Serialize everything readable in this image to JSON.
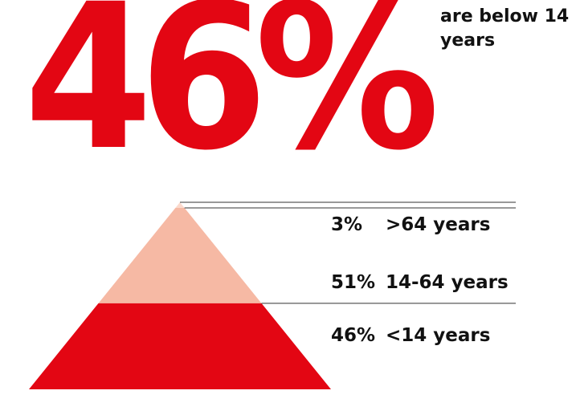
{
  "headline": {
    "value": "46%",
    "caption": "are below 14 years"
  },
  "colors": {
    "accent": "#e30613",
    "light": "#f6b9a4",
    "lightest": "#fbd9cc",
    "line": "#333333",
    "text": "#111111"
  },
  "chart_data": {
    "type": "pyramid",
    "title": "",
    "categories": [
      ">64 years",
      "14-64 years",
      "<14 years"
    ],
    "values": [
      3,
      51,
      46
    ],
    "unit": "%",
    "labels": [
      {
        "pct": "3%",
        "range": ">64 years"
      },
      {
        "pct": "51%",
        "range": "14-64 years"
      },
      {
        "pct": "46%",
        "range": "<14 years"
      }
    ]
  }
}
